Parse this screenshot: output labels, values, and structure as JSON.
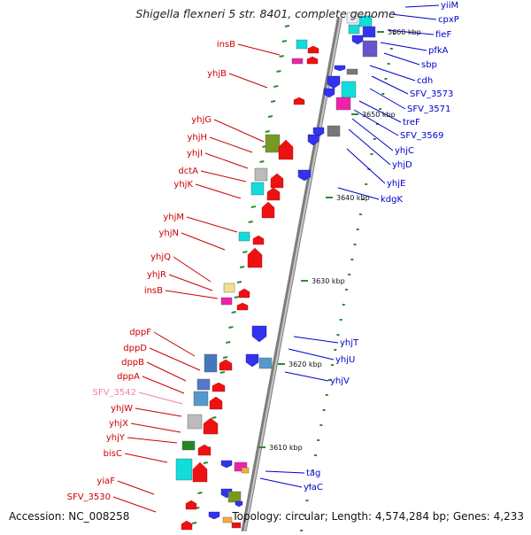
{
  "title": "Shigella flexneri 5 str. 8401, complete genome",
  "accession_text": "Accession: NC_008258",
  "summary_text": "Topology: circular; Length: 4,574,284 bp; Genes: 4,233",
  "colors": {
    "left_label": "#cc0000",
    "right_label": "#0000cc",
    "pink_label": "#f080b0",
    "backbone": "#999999",
    "tick": "#2e8b2e"
  },
  "coordinates": [
    "3660 kbp",
    "3650 kbp",
    "3640 kbp",
    "3630 kbp",
    "3620 kbp",
    "3610 kbp"
  ],
  "left_genes": [
    "insB",
    "yhjB",
    "yhjG",
    "yhjH",
    "yhjI",
    "dctA",
    "yhjK",
    "yhjM",
    "yhjN",
    "yhjQ",
    "yhjR",
    "insB",
    "dppF",
    "dppD",
    "dppB",
    "dppA",
    "SFV_3542",
    "yhjW",
    "yhjX",
    "yhjY",
    "bisC",
    "yiaF",
    "SFV_3530"
  ],
  "right_genes": [
    "yiiM",
    "cpxP",
    "fieF",
    "pfkA",
    "sbp",
    "cdh",
    "SFV_3573",
    "SFV_3571",
    "treF",
    "SFV_3569",
    "yhjC",
    "yhjD",
    "yhjE",
    "kdgK",
    "yhjT",
    "yhjU",
    "yhjV",
    "tag",
    "yiaC"
  ]
}
